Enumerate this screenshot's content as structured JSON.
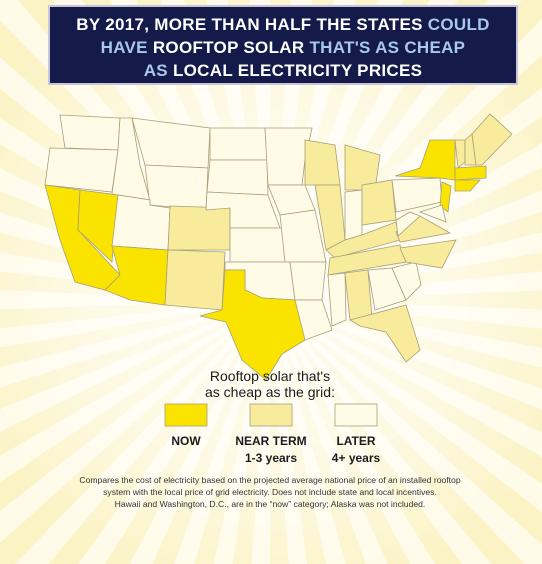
{
  "title": {
    "lines": [
      [
        "BY 2017, MORE THAN HALF THE STATES ",
        "COULD"
      ],
      [
        "HAVE ",
        "ROOFTOP SOLAR",
        " THAT'S AS CHEAP"
      ],
      [
        "AS ",
        "LOCAL ELECTRICITY PRICES"
      ]
    ]
  },
  "legend": {
    "heading": [
      "Rooftop solar that's",
      "as cheap as the grid:"
    ],
    "items": [
      {
        "label": "NOW"
      },
      {
        "label": "NEAR TERM",
        "sublabel": "1-3 years"
      },
      {
        "label": "LATER",
        "sublabel": "4+ years"
      }
    ]
  },
  "footnote": [
    "Compares the cost of electricity based on the projected average national price of an installed rooftop",
    "system with the local price of grid electricity. Does not include state and local incentives.",
    "Hawaii and Washington, D.C., are in the “now” category; Alaska was not included."
  ]
}
